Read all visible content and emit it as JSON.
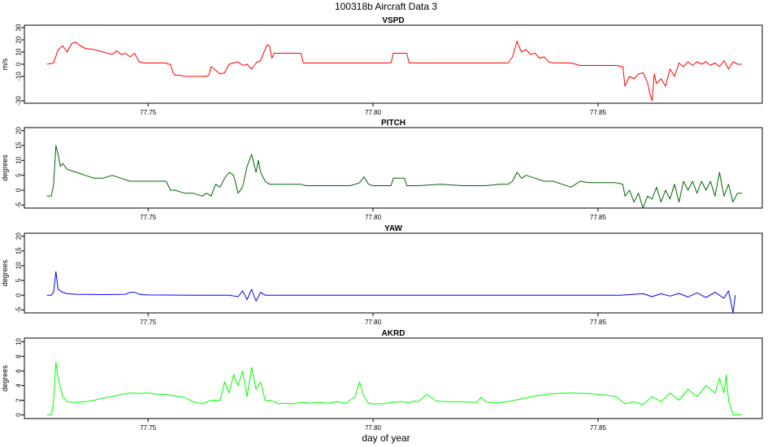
{
  "title": "100318b   Aircraft Data 3",
  "xlabel": "day of year",
  "chart_data": [
    {
      "type": "line",
      "title": "VSPD",
      "ylabel": "m/s",
      "color": "#ff0000",
      "xlim": [
        77.7225,
        77.8865
      ],
      "ylim": [
        -32,
        32
      ],
      "xticks": [
        77.75,
        77.8,
        77.85
      ],
      "xtick_labels": [
        "77.75",
        "77.80",
        "77.85"
      ],
      "yticks": [
        -30,
        -10,
        0,
        10,
        20,
        30
      ],
      "ytick_labels": [
        "-30",
        "-10",
        "0",
        "10",
        "20",
        "30"
      ],
      "series": [
        {
          "x": [
            77.7275,
            77.729,
            77.73,
            77.731,
            77.732,
            77.733,
            77.734,
            77.735,
            77.736,
            77.738,
            77.74,
            77.742,
            77.743,
            77.744,
            77.745,
            77.746,
            77.747,
            77.748,
            77.749,
            77.75,
            77.752,
            77.754,
            77.7545,
            77.755,
            77.7555,
            77.756,
            77.757,
            77.758,
            77.76,
            77.762,
            77.763,
            77.7635,
            77.764,
            77.765,
            77.766,
            77.767,
            77.768,
            77.769,
            77.77,
            77.771,
            77.772,
            77.773,
            77.774,
            77.775,
            77.776,
            77.7765,
            77.777,
            77.7775,
            77.778,
            77.779,
            77.78,
            77.781,
            77.782,
            77.783,
            77.784,
            77.7845,
            77.785,
            77.786,
            77.79,
            77.795,
            77.8,
            77.804,
            77.8045,
            77.805,
            77.806,
            77.807,
            77.8075,
            77.808,
            77.81,
            77.815,
            77.82,
            77.825,
            77.83,
            77.831,
            77.832,
            77.8325,
            77.833,
            77.834,
            77.835,
            77.836,
            77.837,
            77.838,
            77.839,
            77.84,
            77.842,
            77.844,
            77.846,
            77.848,
            77.85,
            77.852,
            77.854,
            77.8555,
            77.856,
            77.857,
            77.858,
            77.859,
            77.86,
            77.861,
            77.8615,
            77.862,
            77.8625,
            77.863,
            77.864,
            77.865,
            77.866,
            77.867,
            77.868,
            77.869,
            77.87,
            77.871,
            77.872,
            77.873,
            77.874,
            77.875,
            77.876,
            77.877,
            77.878,
            77.879,
            77.88,
            77.881,
            77.882
          ],
          "y": [
            0,
            1,
            12,
            15,
            10,
            17,
            18,
            15,
            13,
            12,
            10,
            8,
            11,
            8,
            9,
            6,
            9,
            2,
            1,
            1,
            1,
            1,
            0,
            0,
            -7,
            -9,
            -9,
            -10,
            -10,
            -10,
            -10,
            -9,
            -2,
            -5,
            -8,
            -7,
            0,
            1,
            2,
            -1,
            0,
            -4,
            1,
            3,
            12,
            16,
            15,
            5,
            9,
            9,
            9,
            9,
            9,
            9,
            9,
            1,
            1,
            1,
            1,
            1,
            1,
            1,
            9,
            9,
            9,
            9,
            9,
            1,
            1,
            1,
            1,
            1,
            1,
            6,
            19,
            14,
            10,
            12,
            8,
            9,
            5,
            6,
            2,
            1,
            1,
            1,
            -1,
            -1,
            -1,
            -1,
            -1,
            -2,
            -18,
            -10,
            -12,
            -8,
            -7,
            -15,
            -24,
            -30,
            -8,
            -16,
            -12,
            -18,
            -4,
            -10,
            1,
            -2,
            2,
            -1,
            2,
            0,
            2,
            -1,
            1,
            -2,
            3,
            -4,
            2,
            0,
            0
          ]
        }
      ]
    },
    {
      "type": "line",
      "title": "PITCH",
      "ylabel": "degrees",
      "color": "#006400",
      "xlim": [
        77.7225,
        77.8865
      ],
      "ylim": [
        -6,
        21
      ],
      "xticks": [
        77.75,
        77.8,
        77.85
      ],
      "xtick_labels": [
        "77.75",
        "77.80",
        "77.85"
      ],
      "yticks": [
        -5,
        0,
        5,
        10,
        15,
        20
      ],
      "ytick_labels": [
        "-5",
        "0",
        "5",
        "10",
        "15",
        "20"
      ],
      "series": [
        {
          "x": [
            77.7275,
            77.7285,
            77.729,
            77.7295,
            77.73,
            77.7305,
            77.731,
            77.732,
            77.734,
            77.736,
            77.738,
            77.74,
            77.742,
            77.744,
            77.746,
            77.748,
            77.75,
            77.752,
            77.754,
            77.755,
            77.756,
            77.758,
            77.76,
            77.762,
            77.763,
            77.764,
            77.765,
            77.766,
            77.767,
            77.768,
            77.769,
            77.77,
            77.771,
            77.772,
            77.773,
            77.774,
            77.7745,
            77.775,
            77.776,
            77.777,
            77.778,
            77.779,
            77.78,
            77.781,
            77.782,
            77.783,
            77.784,
            77.785,
            77.79,
            77.795,
            77.797,
            77.798,
            77.799,
            77.8,
            77.802,
            77.804,
            77.8045,
            77.807,
            77.8075,
            77.81,
            77.815,
            77.82,
            77.825,
            77.828,
            77.83,
            77.831,
            77.832,
            77.833,
            77.834,
            77.836,
            77.838,
            77.84,
            77.842,
            77.844,
            77.846,
            77.848,
            77.85,
            77.852,
            77.854,
            77.8555,
            77.856,
            77.857,
            77.858,
            77.859,
            77.86,
            77.861,
            77.862,
            77.863,
            77.864,
            77.865,
            77.866,
            77.867,
            77.868,
            77.869,
            77.87,
            77.871,
            77.872,
            77.873,
            77.874,
            77.875,
            77.876,
            77.877,
            77.878,
            77.879,
            77.88,
            77.881,
            77.882
          ],
          "y": [
            -2,
            -2,
            2,
            15,
            12,
            8,
            9,
            7,
            6,
            5,
            4,
            4,
            5,
            4,
            3,
            3,
            3,
            3,
            3,
            0,
            0,
            -1,
            -1,
            -2,
            -1,
            -2,
            2,
            1,
            4,
            6,
            5,
            -1,
            1,
            8,
            12,
            6,
            10,
            6,
            3,
            2,
            2,
            2,
            2,
            2,
            2,
            2,
            2,
            1.5,
            1.5,
            1.5,
            2.5,
            4.5,
            2,
            1.5,
            1.5,
            1.5,
            4,
            4,
            1.5,
            1.5,
            2,
            1.5,
            1.5,
            2,
            2,
            3,
            6,
            4,
            5,
            4,
            3,
            3,
            2,
            1,
            3,
            2.5,
            2.5,
            2.5,
            2.5,
            2,
            -2,
            0,
            -4,
            -1,
            -6,
            -2,
            -3,
            1,
            -4,
            0,
            -3,
            2,
            -4,
            3,
            0,
            3,
            -1,
            3,
            0,
            3,
            -2,
            6,
            -2,
            2,
            -4,
            -1,
            -1
          ]
        }
      ]
    },
    {
      "type": "line",
      "title": "YAW",
      "ylabel": "degrees",
      "color": "#0000ff",
      "xlim": [
        77.7225,
        77.8865
      ],
      "ylim": [
        -6,
        21
      ],
      "xticks": [
        77.75,
        77.8,
        77.85
      ],
      "xtick_labels": [
        "77.75",
        "77.80",
        "77.85"
      ],
      "yticks": [
        -5,
        0,
        5,
        10,
        15,
        20
      ],
      "ytick_labels": [
        "-5",
        "0",
        "5",
        "10",
        "15",
        "20"
      ],
      "series": [
        {
          "x": [
            77.7275,
            77.7285,
            77.729,
            77.7295,
            77.73,
            77.731,
            77.732,
            77.734,
            77.74,
            77.745,
            77.746,
            77.747,
            77.748,
            77.749,
            77.75,
            77.76,
            77.768,
            77.77,
            77.771,
            77.772,
            77.773,
            77.774,
            77.775,
            77.776,
            77.78,
            77.79,
            77.8,
            77.82,
            77.84,
            77.855,
            77.86,
            77.862,
            77.864,
            77.866,
            77.868,
            77.87,
            77.872,
            77.874,
            77.876,
            77.878,
            77.879,
            77.8795,
            77.88,
            77.8805
          ],
          "y": [
            0,
            0,
            1,
            8,
            2,
            1,
            0.5,
            0.3,
            0.2,
            0.3,
            1,
            1,
            0.3,
            0.2,
            0.1,
            0,
            0,
            -0.5,
            1.5,
            -1.5,
            2,
            -2,
            1,
            0,
            0,
            0,
            0,
            0,
            0,
            0,
            0.5,
            -0.5,
            0.5,
            -0.3,
            0.6,
            -0.6,
            0.8,
            -0.8,
            1,
            -1,
            1.5,
            -2,
            -6,
            0
          ]
        }
      ]
    },
    {
      "type": "line",
      "title": "AKRD",
      "ylabel": "degrees",
      "color": "#00ff00",
      "xlim": [
        77.7225,
        77.8865
      ],
      "ylim": [
        -0.5,
        10.5
      ],
      "xticks": [
        77.75,
        77.8,
        77.85
      ],
      "xtick_labels": [
        "77.75",
        "77.80",
        "77.85"
      ],
      "yticks": [
        0,
        2,
        4,
        6,
        8,
        10
      ],
      "ytick_labels": [
        "0",
        "2",
        "4",
        "6",
        "8",
        "10"
      ],
      "series": [
        {
          "x": [
            77.7275,
            77.7285,
            77.729,
            77.7295,
            77.73,
            77.731,
            77.732,
            77.734,
            77.736,
            77.738,
            77.74,
            77.742,
            77.744,
            77.746,
            77.748,
            77.75,
            77.752,
            77.754,
            77.756,
            77.758,
            77.76,
            77.762,
            77.764,
            77.766,
            77.767,
            77.768,
            77.769,
            77.77,
            77.771,
            77.772,
            77.773,
            77.774,
            77.775,
            77.776,
            77.777,
            77.778,
            77.779,
            77.78,
            77.782,
            77.784,
            77.786,
            77.788,
            77.79,
            77.792,
            77.794,
            77.796,
            77.797,
            77.798,
            77.799,
            77.8,
            77.802,
            77.804,
            77.806,
            77.808,
            77.809,
            77.81,
            77.812,
            77.814,
            77.816,
            77.818,
            77.82,
            77.823,
            77.824,
            77.825,
            77.827,
            77.83,
            77.833,
            77.836,
            77.84,
            77.844,
            77.848,
            77.852,
            77.854,
            77.856,
            77.858,
            77.86,
            77.862,
            77.864,
            77.866,
            77.868,
            77.87,
            77.872,
            77.874,
            77.876,
            77.877,
            77.878,
            77.8785,
            77.879,
            77.88,
            77.881,
            77.882
          ],
          "y": [
            0,
            0,
            2,
            7.2,
            5,
            2.5,
            1.8,
            1.7,
            1.8,
            2,
            2.3,
            2.5,
            2.8,
            3,
            2.9,
            3,
            2.8,
            2.8,
            2.6,
            2.4,
            1.8,
            1.5,
            2,
            2,
            4.5,
            3,
            5.5,
            4,
            6,
            2.5,
            6.5,
            3.5,
            4.5,
            2,
            2,
            1.8,
            1.5,
            1.6,
            1.5,
            1.7,
            1.6,
            1.7,
            1.6,
            1.8,
            1.6,
            2.5,
            4.5,
            2.5,
            1.6,
            1.5,
            1.5,
            1.7,
            1.8,
            1.7,
            1.9,
            1.8,
            2.8,
            1.9,
            1.8,
            1.8,
            1.8,
            1.7,
            2.4,
            1.8,
            1.6,
            1.8,
            2.2,
            2.6,
            2.9,
            3,
            2.9,
            2.7,
            2.5,
            1.5,
            1.8,
            1.4,
            2.5,
            1.8,
            3,
            2,
            3.5,
            2.5,
            4,
            3,
            5,
            3,
            5.5,
            2,
            0,
            0,
            0
          ]
        }
      ]
    }
  ]
}
